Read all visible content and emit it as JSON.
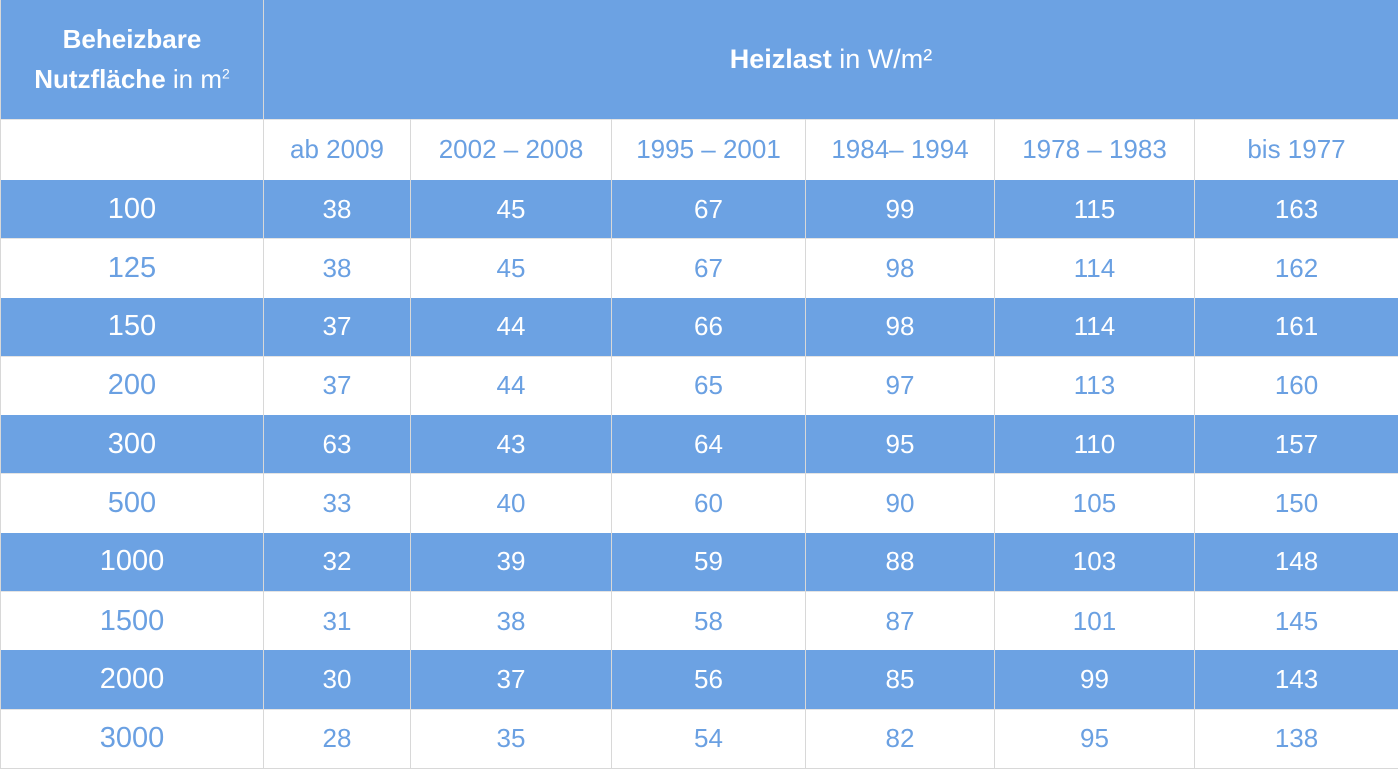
{
  "header": {
    "area_title_line1": "Beheizbare",
    "area_title_line2_bold": "Nutzfläche",
    "area_title_line2_unit": " in m",
    "area_title_sup": "2",
    "load_title_bold": "Heizlast",
    "load_title_unit": " in W/m²"
  },
  "year_columns": [
    "ab 2009",
    "2002 – 2008",
    "1995 – 2001",
    "1984– 1994",
    "1978 – 1983",
    "bis 1977"
  ],
  "rows": [
    {
      "area": "100",
      "values": [
        "38",
        "45",
        "67",
        "99",
        "115",
        "163"
      ]
    },
    {
      "area": "125",
      "values": [
        "38",
        "45",
        "67",
        "98",
        "114",
        "162"
      ]
    },
    {
      "area": "150",
      "values": [
        "37",
        "44",
        "66",
        "98",
        "114",
        "161"
      ]
    },
    {
      "area": "200",
      "values": [
        "37",
        "44",
        "65",
        "97",
        "113",
        "160"
      ]
    },
    {
      "area": "300",
      "values": [
        "63",
        "43",
        "64",
        "95",
        "110",
        "157"
      ]
    },
    {
      "area": "500",
      "values": [
        "33",
        "40",
        "60",
        "90",
        "105",
        "150"
      ]
    },
    {
      "area": "1000",
      "values": [
        "32",
        "39",
        "59",
        "88",
        "103",
        "148"
      ]
    },
    {
      "area": "1500",
      "values": [
        "31",
        "38",
        "58",
        "87",
        "101",
        "145"
      ]
    },
    {
      "area": "2000",
      "values": [
        "30",
        "37",
        "56",
        "85",
        "99",
        "143"
      ]
    },
    {
      "area": "3000",
      "values": [
        "28",
        "35",
        "54",
        "82",
        "95",
        "138"
      ]
    }
  ],
  "colors": {
    "header_blue": "#6ca2e3",
    "text_blue": "#6aa0e2",
    "white": "#ffffff"
  }
}
